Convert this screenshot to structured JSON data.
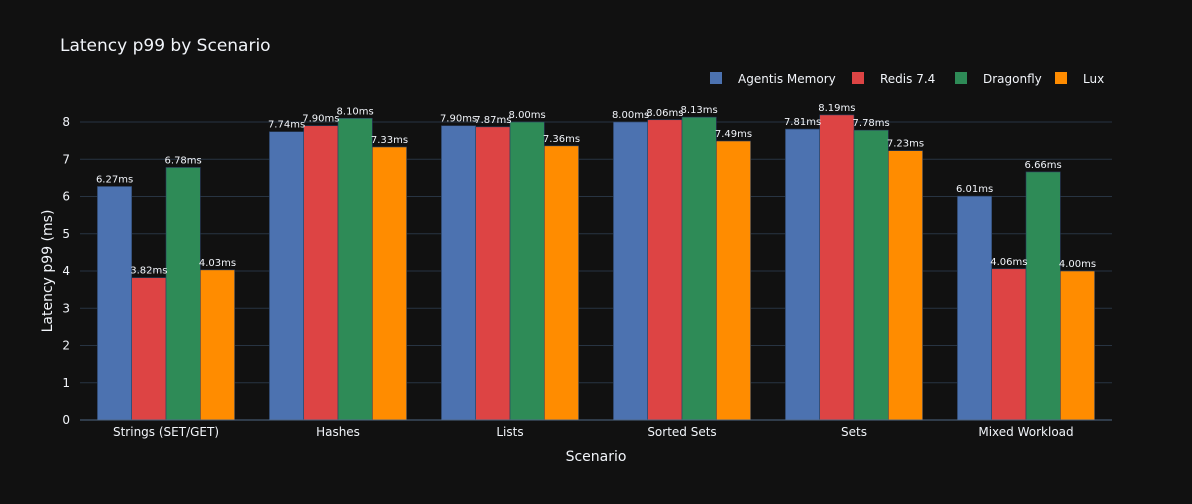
{
  "chart_data": {
    "type": "bar",
    "title": "Latency p99 by Scenario",
    "xlabel": "Scenario",
    "ylabel": "Latency p99 (ms)",
    "ylim": [
      0,
      8.4
    ],
    "yticks": [
      0,
      1,
      2,
      3,
      4,
      5,
      6,
      7,
      8
    ],
    "grid": true,
    "legend_position": "top-right",
    "value_suffix": "ms",
    "categories": [
      "Strings (SET/GET)",
      "Hashes",
      "Lists",
      "Sorted Sets",
      "Sets",
      "Mixed Workload"
    ],
    "series": [
      {
        "name": "Agentis Memory",
        "color": "#4c72b0",
        "values": [
          6.27,
          7.74,
          7.9,
          8.0,
          7.81,
          6.01
        ]
      },
      {
        "name": "Redis 7.4",
        "color": "#dd4444",
        "values": [
          3.82,
          7.9,
          7.87,
          8.06,
          8.19,
          4.06
        ]
      },
      {
        "name": "Dragonfly",
        "color": "#2e8b57",
        "values": [
          6.78,
          8.1,
          8.0,
          8.13,
          7.78,
          6.66
        ]
      },
      {
        "name": "Lux",
        "color": "#ff8c00",
        "values": [
          4.03,
          7.33,
          7.36,
          7.49,
          7.23,
          4.0
        ]
      }
    ]
  }
}
